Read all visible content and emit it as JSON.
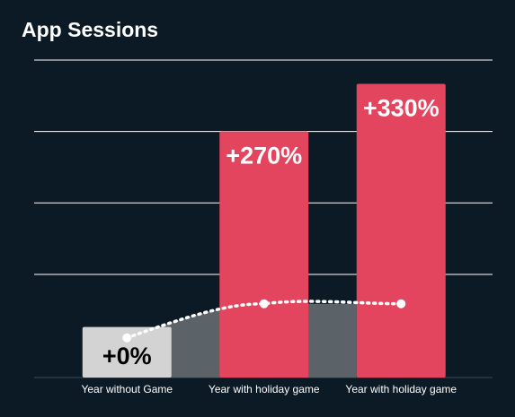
{
  "chart_data": {
    "type": "bar",
    "title": "App Sessions",
    "categories": [
      "Year without Game",
      "Year with holiday game",
      "Year with holiday game"
    ],
    "values": [
      0,
      270,
      330
    ],
    "value_labels": [
      "+0%",
      "+270%",
      "+330%"
    ],
    "ylim": [
      -40,
      360
    ],
    "grid": true,
    "overlay_line": {
      "style": "dotted",
      "values": [
        10,
        53,
        53
      ],
      "area_fill": true
    },
    "colors": {
      "background": "#0b1a24",
      "baseline_bar": "#d3d3d3",
      "highlight_bar": "#e3445e",
      "area": "#5b6368",
      "grid": "#ffffff",
      "text": "#ffffff",
      "baseline_label_text": "#000000"
    }
  }
}
